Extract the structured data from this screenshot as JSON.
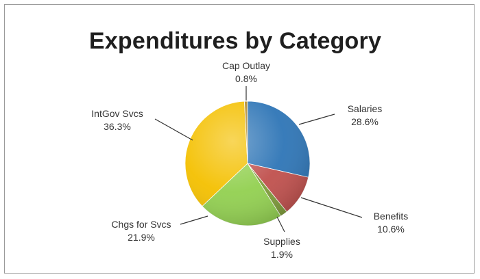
{
  "chart_data": {
    "type": "pie",
    "title": "Expenditures by Category",
    "slices": [
      {
        "label": "Salaries",
        "percent_label": "28.6%",
        "value": 28.6,
        "color": "#2e75b6"
      },
      {
        "label": "Benefits",
        "percent_label": "10.6%",
        "value": 10.6,
        "color": "#c0504d"
      },
      {
        "label": "Supplies",
        "percent_label": "1.9%",
        "value": 1.9,
        "color": "#7f9c3a"
      },
      {
        "label": "Chgs for Svcs",
        "percent_label": "21.9%",
        "value": 21.9,
        "color": "#92d050"
      },
      {
        "label": "IntGov Svcs",
        "percent_label": "36.3%",
        "value": 36.3,
        "color": "#f4c000"
      },
      {
        "label": "Cap Outlay",
        "percent_label": "0.8%",
        "value": 0.8,
        "color": "#b08a2c"
      }
    ],
    "legend": "none",
    "data_labels": "outside-with-leader-lines"
  }
}
